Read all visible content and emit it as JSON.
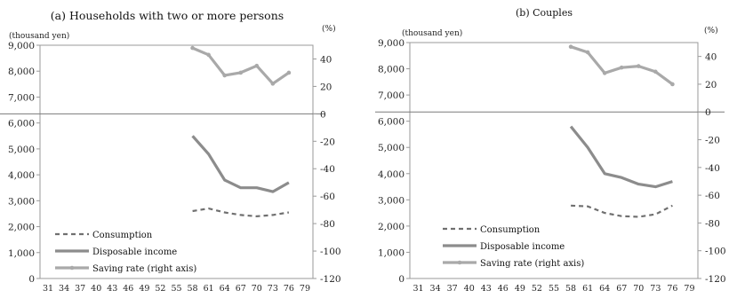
{
  "chart_data": [
    {
      "type": "line",
      "title": "(a) Households with two or more persons",
      "ylabel_left": "(thousand yen)",
      "ylabel_right": "(%)",
      "x_ticks": [
        "31",
        "34",
        "37",
        "40",
        "43",
        "46",
        "49",
        "52",
        "55",
        "58",
        "61",
        "64",
        "67",
        "70",
        "73",
        "76",
        "79"
      ],
      "y_left_ticks": [
        "0",
        "1,000",
        "2,000",
        "3,000",
        "4,000",
        "5,000",
        "6,000",
        "7,000",
        "8,000",
        "9,000"
      ],
      "y_right_ticks": [
        "-120",
        "-100",
        "-80",
        "-60",
        "-40",
        "-20",
        "0",
        "20",
        "40"
      ],
      "ylim_left": [
        0,
        9000
      ],
      "ylim_right": [
        -120,
        50
      ],
      "x": [
        58,
        61,
        64,
        67,
        70,
        73,
        76
      ],
      "series": [
        {
          "name": "Consumption",
          "axis": "left",
          "style": "dashed",
          "color": "#707070",
          "values": [
            2600,
            2700,
            2550,
            2450,
            2400,
            2450,
            2550
          ]
        },
        {
          "name": "Disposable income",
          "axis": "left",
          "style": "solid",
          "color": "#8c8c8c",
          "values": [
            5500,
            4800,
            3800,
            3500,
            3500,
            3350,
            3700
          ]
        },
        {
          "name": "Saving rate (right axis)",
          "axis": "right",
          "style": "marker",
          "color": "#a9a9a9",
          "values": [
            48,
            43,
            28,
            30,
            35,
            22,
            30
          ]
        }
      ],
      "legend_position": "bottom-left"
    },
    {
      "type": "line",
      "title": "(b) Couples",
      "ylabel_left": "(thousand yen)",
      "ylabel_right": "(%)",
      "x_ticks": [
        "31",
        "34",
        "37",
        "40",
        "43",
        "46",
        "49",
        "52",
        "55",
        "58",
        "61",
        "64",
        "67",
        "70",
        "73",
        "76",
        "79"
      ],
      "y_left_ticks": [
        "0",
        "1,000",
        "2,000",
        "3,000",
        "4,000",
        "5,000",
        "6,000",
        "7,000",
        "8,000",
        "9,000"
      ],
      "y_right_ticks": [
        "-120",
        "-100",
        "-80",
        "-60",
        "-40",
        "-20",
        "0",
        "20",
        "40"
      ],
      "ylim_left": [
        0,
        9000
      ],
      "ylim_right": [
        -120,
        50
      ],
      "x": [
        58,
        61,
        64,
        67,
        70,
        73,
        76
      ],
      "series": [
        {
          "name": "Consumption",
          "axis": "left",
          "style": "dashed",
          "color": "#707070",
          "values": [
            2780,
            2750,
            2500,
            2380,
            2350,
            2450,
            2780
          ]
        },
        {
          "name": "Disposable income",
          "axis": "left",
          "style": "solid",
          "color": "#8c8c8c",
          "values": [
            5800,
            5000,
            4000,
            3850,
            3600,
            3500,
            3700
          ]
        },
        {
          "name": "Saving rate (right axis)",
          "axis": "right",
          "style": "marker",
          "color": "#a9a9a9",
          "values": [
            47,
            43,
            28,
            32,
            33,
            29,
            20
          ]
        }
      ],
      "legend_position": "bottom-left"
    }
  ]
}
